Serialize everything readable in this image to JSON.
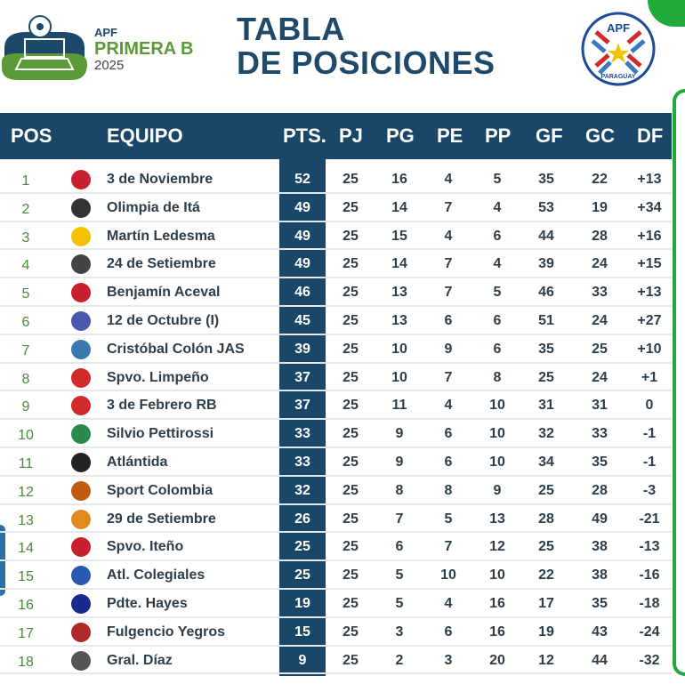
{
  "header": {
    "league_org": "APF",
    "league_name": "PRIMERA B",
    "season": "2025",
    "title_line1": "TABLA",
    "title_line2": "DE POSICIONES",
    "badge_text": "APF",
    "badge_country": "PARAGUAY"
  },
  "colors": {
    "primary": "#1a4767",
    "league_green": "#5b9a36",
    "pos_green": "#4a8a3a"
  },
  "columns": [
    "POS",
    "EQUIPO",
    "PTS.",
    "PJ",
    "PG",
    "PE",
    "PP",
    "GF",
    "GC",
    "DF"
  ],
  "rows": [
    {
      "pos": "1",
      "team": "3 de Noviembre",
      "pts": "52",
      "pj": "25",
      "pg": "16",
      "pe": "4",
      "pp": "5",
      "gf": "35",
      "gc": "22",
      "df": "+13",
      "logo_color": "#c8202f"
    },
    {
      "pos": "2",
      "team": "Olimpia de Itá",
      "pts": "49",
      "pj": "25",
      "pg": "14",
      "pe": "7",
      "pp": "4",
      "gf": "53",
      "gc": "19",
      "df": "+34",
      "logo_color": "#333333"
    },
    {
      "pos": "3",
      "team": "Martín Ledesma",
      "pts": "49",
      "pj": "25",
      "pg": "15",
      "pe": "4",
      "pp": "6",
      "gf": "44",
      "gc": "28",
      "df": "+16",
      "logo_color": "#f2c200"
    },
    {
      "pos": "4",
      "team": "24 de Setiembre",
      "pts": "49",
      "pj": "25",
      "pg": "14",
      "pe": "7",
      "pp": "4",
      "gf": "39",
      "gc": "24",
      "df": "+15",
      "logo_color": "#444444"
    },
    {
      "pos": "5",
      "team": "Benjamín Aceval",
      "pts": "46",
      "pj": "25",
      "pg": "13",
      "pe": "7",
      "pp": "5",
      "gf": "46",
      "gc": "33",
      "df": "+13",
      "logo_color": "#c8202f"
    },
    {
      "pos": "6",
      "team": "12 de Octubre (I)",
      "pts": "45",
      "pj": "25",
      "pg": "13",
      "pe": "6",
      "pp": "6",
      "gf": "51",
      "gc": "24",
      "df": "+27",
      "logo_color": "#4a58b0"
    },
    {
      "pos": "7",
      "team": "Cristóbal Colón JAS",
      "pts": "39",
      "pj": "25",
      "pg": "10",
      "pe": "9",
      "pp": "6",
      "gf": "35",
      "gc": "25",
      "df": "+10",
      "logo_color": "#3a78b0"
    },
    {
      "pos": "8",
      "team": "Spvo. Limpeño",
      "pts": "37",
      "pj": "25",
      "pg": "10",
      "pe": "7",
      "pp": "8",
      "gf": "25",
      "gc": "24",
      "df": "+1",
      "logo_color": "#d02a2a"
    },
    {
      "pos": "9",
      "team": "3 de Febrero RB",
      "pts": "37",
      "pj": "25",
      "pg": "11",
      "pe": "4",
      "pp": "10",
      "gf": "31",
      "gc": "31",
      "df": "0",
      "logo_color": "#d02a2a"
    },
    {
      "pos": "10",
      "team": "Silvio Pettirossi",
      "pts": "33",
      "pj": "25",
      "pg": "9",
      "pe": "6",
      "pp": "10",
      "gf": "32",
      "gc": "33",
      "df": "-1",
      "logo_color": "#2a8a4a"
    },
    {
      "pos": "11",
      "team": "Atlántida",
      "pts": "33",
      "pj": "25",
      "pg": "9",
      "pe": "6",
      "pp": "10",
      "gf": "34",
      "gc": "35",
      "df": "-1",
      "logo_color": "#222222"
    },
    {
      "pos": "12",
      "team": "Sport Colombia",
      "pts": "32",
      "pj": "25",
      "pg": "8",
      "pe": "8",
      "pp": "9",
      "gf": "25",
      "gc": "28",
      "df": "-3",
      "logo_color": "#c05a10"
    },
    {
      "pos": "13",
      "team": "29 de Setiembre",
      "pts": "26",
      "pj": "25",
      "pg": "7",
      "pe": "5",
      "pp": "13",
      "gf": "28",
      "gc": "49",
      "df": "-21",
      "logo_color": "#e08a20"
    },
    {
      "pos": "14",
      "team": "Spvo. Iteño",
      "pts": "25",
      "pj": "25",
      "pg": "6",
      "pe": "7",
      "pp": "12",
      "gf": "25",
      "gc": "38",
      "df": "-13",
      "logo_color": "#c8202f"
    },
    {
      "pos": "15",
      "team": "Atl. Colegiales",
      "pts": "25",
      "pj": "25",
      "pg": "5",
      "pe": "10",
      "pp": "10",
      "gf": "22",
      "gc": "38",
      "df": "-16",
      "logo_color": "#2a5ab0"
    },
    {
      "pos": "16",
      "team": "Pdte. Hayes",
      "pts": "19",
      "pj": "25",
      "pg": "5",
      "pe": "4",
      "pp": "16",
      "gf": "17",
      "gc": "35",
      "df": "-18",
      "logo_color": "#1a2a8a"
    },
    {
      "pos": "17",
      "team": "Fulgencio Yegros",
      "pts": "15",
      "pj": "25",
      "pg": "3",
      "pe": "6",
      "pp": "16",
      "gf": "19",
      "gc": "43",
      "df": "-24",
      "logo_color": "#b02a2a"
    },
    {
      "pos": "18",
      "team": "Gral. Díaz",
      "pts": "9",
      "pj": "25",
      "pg": "2",
      "pe": "3",
      "pp": "20",
      "gf": "12",
      "gc": "44",
      "df": "-32",
      "logo_color": "#555555"
    }
  ]
}
